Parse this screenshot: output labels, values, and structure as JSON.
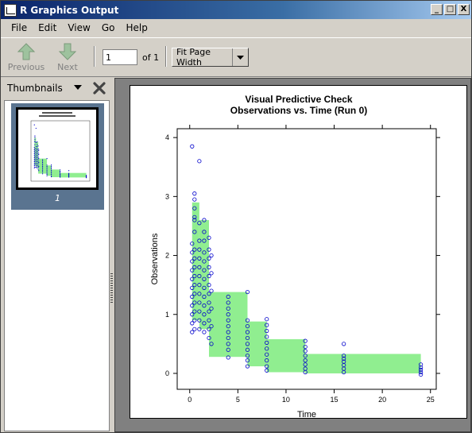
{
  "window": {
    "title": "R Graphics Output",
    "controls": {
      "minimize": "_",
      "maximize": "□",
      "close": "X"
    }
  },
  "menu": [
    "File",
    "Edit",
    "View",
    "Go",
    "Help"
  ],
  "toolbar": {
    "previous_label": "Previous",
    "next_label": "Next",
    "page_value": "1",
    "page_of": "of 1",
    "zoom": "Fit Page Width"
  },
  "sidebar": {
    "title": "Thumbnails",
    "thumbnails": [
      {
        "label": "1"
      }
    ]
  },
  "colors": {
    "band": "#90ee90",
    "points": "#0000cc",
    "title_bar": "#0a246a"
  },
  "chart_data": {
    "type": "scatter",
    "title": "Visual Predictive Check",
    "subtitle": "Observations vs. Time (Run 0)",
    "xlabel": "Time",
    "ylabel": "Observations",
    "xlim": [
      -1.3,
      25.6
    ],
    "ylim": [
      -0.27,
      4.15
    ],
    "x_ticks": [
      0,
      5,
      10,
      15,
      20,
      25
    ],
    "y_ticks": [
      0,
      1,
      2,
      3,
      4
    ],
    "grid": false,
    "bands": [
      {
        "x_from": 0.25,
        "x_to": 1.0,
        "y_low": 0.9,
        "y_high": 2.9
      },
      {
        "x_from": 1.0,
        "x_to": 2.0,
        "y_low": 0.75,
        "y_high": 2.6
      },
      {
        "x_from": 2.0,
        "x_to": 6.0,
        "y_low": 0.28,
        "y_high": 1.38
      },
      {
        "x_from": 6.0,
        "x_to": 8.0,
        "y_low": 0.12,
        "y_high": 0.88
      },
      {
        "x_from": 8.0,
        "x_to": 12.0,
        "y_low": 0.02,
        "y_high": 0.58
      },
      {
        "x_from": 12.0,
        "x_to": 24.0,
        "y_low": 0.0,
        "y_high": 0.33
      }
    ],
    "points": [
      [
        0.25,
        3.85
      ],
      [
        0.5,
        2.65
      ],
      [
        0.5,
        2.95
      ],
      [
        0.5,
        2.8
      ],
      [
        0.5,
        2.6
      ],
      [
        0.25,
        2.2
      ],
      [
        0.25,
        2.05
      ],
      [
        0.25,
        1.9
      ],
      [
        0.25,
        1.75
      ],
      [
        0.25,
        1.6
      ],
      [
        0.25,
        1.45
      ],
      [
        0.25,
        1.3
      ],
      [
        0.25,
        1.15
      ],
      [
        0.25,
        1.0
      ],
      [
        0.25,
        0.85
      ],
      [
        0.25,
        0.7
      ],
      [
        0.5,
        3.05
      ],
      [
        0.5,
        2.4
      ],
      [
        0.5,
        2.1
      ],
      [
        0.5,
        1.95
      ],
      [
        0.5,
        1.8
      ],
      [
        0.5,
        1.65
      ],
      [
        0.5,
        1.5
      ],
      [
        0.5,
        1.35
      ],
      [
        0.5,
        1.2
      ],
      [
        0.5,
        1.05
      ],
      [
        0.5,
        0.9
      ],
      [
        0.5,
        0.75
      ],
      [
        1.0,
        3.6
      ],
      [
        1.0,
        2.55
      ],
      [
        1.0,
        2.25
      ],
      [
        1.0,
        2.1
      ],
      [
        1.0,
        1.95
      ],
      [
        1.0,
        1.8
      ],
      [
        1.0,
        1.65
      ],
      [
        1.0,
        1.5
      ],
      [
        1.0,
        1.35
      ],
      [
        1.0,
        1.2
      ],
      [
        1.0,
        1.05
      ],
      [
        1.0,
        0.9
      ],
      [
        1.0,
        0.75
      ],
      [
        1.5,
        2.6
      ],
      [
        1.5,
        2.4
      ],
      [
        1.5,
        2.25
      ],
      [
        1.5,
        2.05
      ],
      [
        1.5,
        1.9
      ],
      [
        1.5,
        1.75
      ],
      [
        1.5,
        1.6
      ],
      [
        1.5,
        1.45
      ],
      [
        1.5,
        1.3
      ],
      [
        1.5,
        1.15
      ],
      [
        1.5,
        1.0
      ],
      [
        1.5,
        0.85
      ],
      [
        1.5,
        0.7
      ],
      [
        2.0,
        2.3
      ],
      [
        2.0,
        2.1
      ],
      [
        2.0,
        1.95
      ],
      [
        2.0,
        1.8
      ],
      [
        2.0,
        1.65
      ],
      [
        2.0,
        1.5
      ],
      [
        2.0,
        1.35
      ],
      [
        2.0,
        1.2
      ],
      [
        2.0,
        1.05
      ],
      [
        2.0,
        0.9
      ],
      [
        2.0,
        0.75
      ],
      [
        2.0,
        0.6
      ],
      [
        2.25,
        2.0
      ],
      [
        2.25,
        1.7
      ],
      [
        2.25,
        1.4
      ],
      [
        2.25,
        1.1
      ],
      [
        2.25,
        0.8
      ],
      [
        2.25,
        0.5
      ],
      [
        4.0,
        1.3
      ],
      [
        4.0,
        1.2
      ],
      [
        4.0,
        1.1
      ],
      [
        4.0,
        1.0
      ],
      [
        4.0,
        0.9
      ],
      [
        4.0,
        0.8
      ],
      [
        4.0,
        0.7
      ],
      [
        4.0,
        0.6
      ],
      [
        4.0,
        0.5
      ],
      [
        4.0,
        0.4
      ],
      [
        4.0,
        0.27
      ],
      [
        6.0,
        1.38
      ],
      [
        6.0,
        0.9
      ],
      [
        6.0,
        0.8
      ],
      [
        6.0,
        0.7
      ],
      [
        6.0,
        0.6
      ],
      [
        6.0,
        0.5
      ],
      [
        6.0,
        0.4
      ],
      [
        6.0,
        0.3
      ],
      [
        6.0,
        0.22
      ],
      [
        6.0,
        0.12
      ],
      [
        8.0,
        0.92
      ],
      [
        8.0,
        0.82
      ],
      [
        8.0,
        0.72
      ],
      [
        8.0,
        0.62
      ],
      [
        8.0,
        0.52
      ],
      [
        8.0,
        0.42
      ],
      [
        8.0,
        0.32
      ],
      [
        8.0,
        0.22
      ],
      [
        8.0,
        0.12
      ],
      [
        8.0,
        0.05
      ],
      [
        12.0,
        0.55
      ],
      [
        12.0,
        0.45
      ],
      [
        12.0,
        0.38
      ],
      [
        12.0,
        0.3
      ],
      [
        12.0,
        0.22
      ],
      [
        12.0,
        0.15
      ],
      [
        12.0,
        0.08
      ],
      [
        12.0,
        0.02
      ],
      [
        16.0,
        0.5
      ],
      [
        16.0,
        0.3
      ],
      [
        16.0,
        0.25
      ],
      [
        16.0,
        0.2
      ],
      [
        16.0,
        0.14
      ],
      [
        16.0,
        0.08
      ],
      [
        16.0,
        0.02
      ],
      [
        24.0,
        0.15
      ],
      [
        24.0,
        0.1
      ],
      [
        24.0,
        0.06
      ],
      [
        24.0,
        0.02
      ],
      [
        24.0,
        -0.02
      ]
    ]
  }
}
